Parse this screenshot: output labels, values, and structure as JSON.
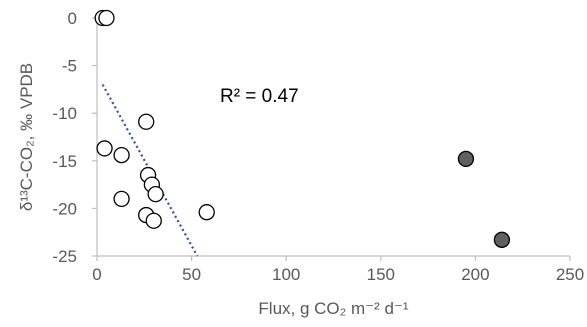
{
  "chart_data": {
    "type": "scatter",
    "title": "",
    "xlabel": "Flux, g CO₂ m⁻² d⁻¹",
    "ylabel": "δ¹³C-CO₂, ‰ VPDB",
    "xlim": [
      0,
      250
    ],
    "ylim": [
      -25,
      0
    ],
    "xticks": [
      0,
      50,
      100,
      150,
      200,
      250
    ],
    "yticks": [
      0,
      -5,
      -10,
      -15,
      -20,
      -25
    ],
    "xtick_labels": [
      "0",
      "50",
      "100",
      "150",
      "200",
      "250"
    ],
    "ytick_labels": [
      "0",
      "-5",
      "-10",
      "-15",
      "-20",
      "-25"
    ],
    "grid": false,
    "series": [
      {
        "marker": "open-circle",
        "color": "#ffffff",
        "stroke": "#000000",
        "points": [
          {
            "x": 3,
            "y": 0
          },
          {
            "x": 5,
            "y": 0
          },
          {
            "x": 4,
            "y": -13.7
          },
          {
            "x": 13,
            "y": -14.4
          },
          {
            "x": 26,
            "y": -10.9
          },
          {
            "x": 27,
            "y": -16.5
          },
          {
            "x": 29,
            "y": -17.5
          },
          {
            "x": 31,
            "y": -18.5
          },
          {
            "x": 13,
            "y": -19
          },
          {
            "x": 26,
            "y": -20.7
          },
          {
            "x": 30,
            "y": -21.3
          },
          {
            "x": 58,
            "y": -20.4
          }
        ]
      },
      {
        "marker": "filled-circle",
        "color": "#606060",
        "stroke": "#000000",
        "points": [
          {
            "x": 195,
            "y": -14.8
          },
          {
            "x": 214,
            "y": -23.3
          }
        ]
      }
    ],
    "trendline": {
      "style": "dotted",
      "color": "#2f4fa8",
      "x": [
        3,
        53
      ],
      "y": [
        -7,
        -25
      ]
    },
    "annotations": [
      {
        "text": "R² = 0.47",
        "x": 65,
        "y": -8.8
      }
    ]
  }
}
